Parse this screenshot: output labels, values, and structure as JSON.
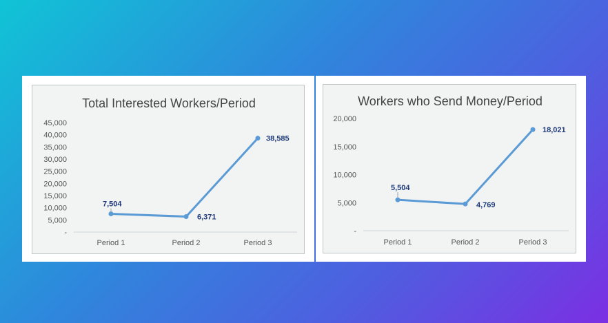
{
  "chart_data": [
    {
      "type": "line",
      "title": "Total Interested Workers/Period",
      "categories": [
        "Period 1",
        "Period 2",
        "Period 3"
      ],
      "values": [
        7504,
        6371,
        38585
      ],
      "data_labels": [
        "7,504",
        "6,371",
        "38,585"
      ],
      "y_ticks": [
        "-",
        "5,000",
        "10,000",
        "15,000",
        "20,000",
        "25,000",
        "30,000",
        "35,000",
        "40,000",
        "45,000"
      ],
      "ylim": [
        0,
        45000
      ],
      "line_color": "#5b9bd5",
      "grid": false
    },
    {
      "type": "line",
      "title": "Workers who Send Money/Period",
      "categories": [
        "Period 1",
        "Period 2",
        "Period 3"
      ],
      "values": [
        5504,
        4769,
        18021
      ],
      "data_labels": [
        "5,504",
        "4,769",
        "18,021"
      ],
      "y_ticks": [
        "-",
        "5,000",
        "10,000",
        "15,000",
        "20,000"
      ],
      "ylim": [
        0,
        20000
      ],
      "line_color": "#5b9bd5",
      "grid": false
    }
  ]
}
